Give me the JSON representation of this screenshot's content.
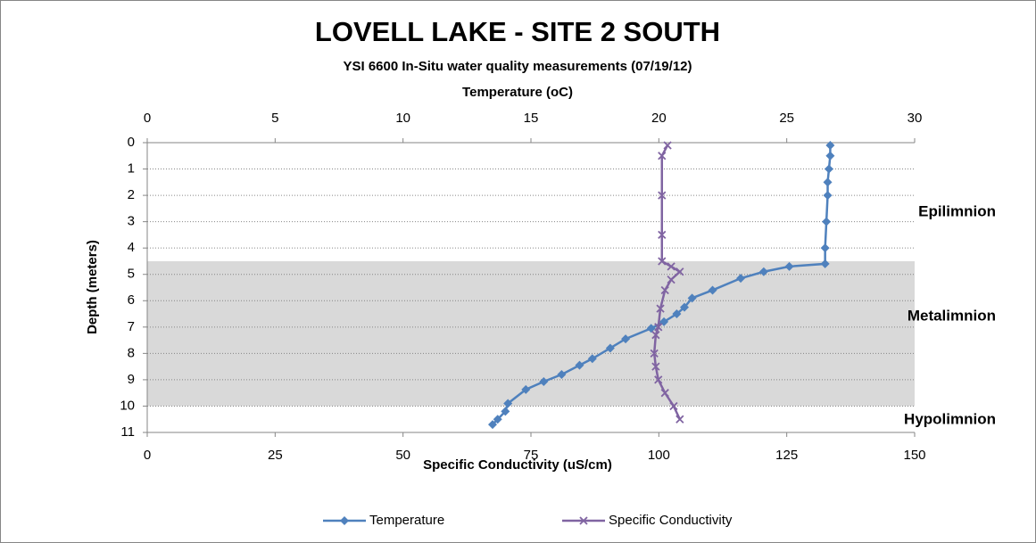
{
  "chart_data": {
    "type": "profile",
    "title": "LOVELL LAKE - SITE 2 SOUTH",
    "subtitle": "YSI 6600 In-Situ water quality measurements (07/19/12)",
    "x2_label": "Temperature (oC)",
    "x_label": "Specific Conductivity (uS/cm)",
    "y_label": "Depth (meters)",
    "xlim": [
      0,
      150
    ],
    "xticks": [
      0,
      25,
      50,
      75,
      100,
      125,
      150
    ],
    "x2lim": [
      0,
      30
    ],
    "x2ticks": [
      0,
      5,
      10,
      15,
      20,
      25,
      30
    ],
    "ylim": [
      0,
      11
    ],
    "yticks": [
      0,
      1,
      2,
      3,
      4,
      5,
      6,
      7,
      8,
      9,
      10,
      11
    ],
    "y_inverted": true,
    "grid": true,
    "zones": [
      {
        "label": "Epilimnion"
      },
      {
        "label": "Metalimnion",
        "from": 4.5,
        "to": 10,
        "color": "#d9d9d9"
      },
      {
        "label": "Hypolimnion"
      }
    ],
    "series": [
      {
        "name": "Temperature",
        "color": "#4f81bd",
        "marker": "diamond",
        "axis": "x2",
        "x": [
          26.7,
          26.7,
          26.65,
          26.6,
          26.6,
          26.55,
          26.5,
          26.5,
          25.1,
          24.1,
          23.2,
          22.1,
          21.3,
          21.0,
          20.7,
          20.2,
          19.7,
          18.7,
          18.1,
          17.4,
          16.9,
          16.2,
          15.5,
          14.8,
          14.1,
          14.0,
          13.7,
          13.5
        ],
        "y": [
          0.1,
          0.5,
          1.0,
          1.5,
          2.0,
          3.0,
          4.0,
          4.6,
          4.7,
          4.9,
          5.15,
          5.6,
          5.9,
          6.25,
          6.5,
          6.8,
          7.05,
          7.45,
          7.8,
          8.2,
          8.45,
          8.8,
          9.07,
          9.37,
          9.9,
          10.2,
          10.5,
          10.7
        ]
      },
      {
        "name": "Specific Conductivity",
        "color": "#8064a2",
        "marker": "x",
        "x": [
          101.7,
          100.6,
          100.6,
          100.6,
          100.6,
          102.4,
          104.1,
          102.4,
          101.2,
          100.3,
          99.9,
          99.4,
          99.1,
          99.4,
          99.9,
          101.2,
          102.9,
          104.1
        ],
        "y": [
          0.1,
          0.5,
          2.0,
          3.5,
          4.5,
          4.7,
          4.9,
          5.2,
          5.6,
          6.3,
          7.0,
          7.3,
          8.0,
          8.5,
          9.0,
          9.5,
          10.0,
          10.5
        ]
      }
    ]
  }
}
